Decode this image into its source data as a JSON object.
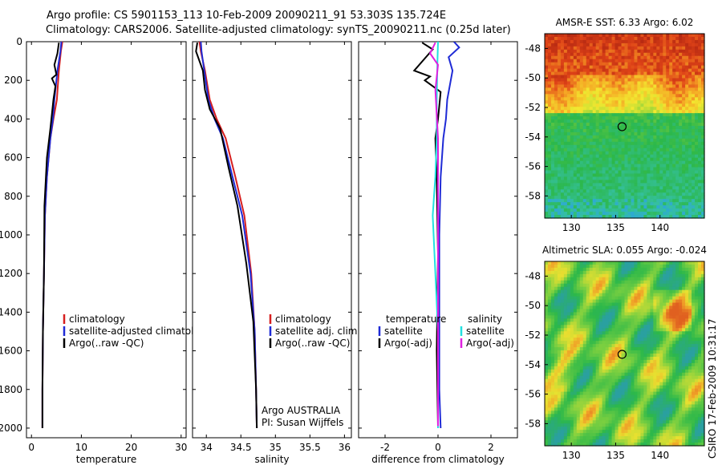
{
  "header": {
    "line1": "Argo profile: CS 5901153_113 10-Feb-2009 20090211_91 53.303S 135.724E",
    "line2": "Climatology: CARS2006. Satellite-adjusted climatology: synTS_20090211.nc (0.25d later)"
  },
  "colors": {
    "climatology": "#d61f1f",
    "satellite": "#1f2bd6",
    "argo": "#000000",
    "sat_diff": "#22e0e0",
    "argo_adj": "#e020e0"
  },
  "chart_data": [
    {
      "type": "line",
      "panel": "temperature",
      "xlabel": "temperature",
      "ylabel": "",
      "xlim": [
        -1,
        31
      ],
      "ylim": [
        2050,
        0
      ],
      "xticks": [
        "0",
        "10",
        "20",
        "30"
      ],
      "yticks": [
        "0",
        "200",
        "400",
        "600",
        "800",
        "1000",
        "1200",
        "1400",
        "1600",
        "1800",
        "2000"
      ],
      "legend": [
        "climatology",
        "satellite-adjusted climatology",
        "Argo(..raw -QC)"
      ],
      "series": [
        {
          "name": "climatology",
          "x": [
            6.2,
            5.9,
            5.5,
            5.1,
            4.4,
            3.8,
            3.1,
            2.7,
            2.5,
            2.3,
            2.2,
            2.2
          ],
          "y": [
            0,
            50,
            150,
            300,
            400,
            500,
            700,
            900,
            1200,
            1500,
            1800,
            2000
          ]
        },
        {
          "name": "satellite adj. clim.",
          "x": [
            6.0,
            5.8,
            5.2,
            4.6,
            4.3,
            3.8,
            3.1,
            2.7,
            2.5,
            2.3,
            2.2,
            2.2
          ],
          "y": [
            0,
            50,
            150,
            300,
            400,
            500,
            700,
            900,
            1200,
            1500,
            1800,
            2000
          ]
        },
        {
          "name": "Argo(..raw -QC)",
          "x": [
            5.5,
            5.2,
            4.6,
            5.0,
            4.1,
            4.8,
            4.4,
            3.8,
            3.1,
            2.6,
            2.5,
            2.3,
            2.2,
            2.2
          ],
          "y": [
            5,
            60,
            120,
            170,
            190,
            230,
            300,
            450,
            600,
            850,
            1200,
            1500,
            1800,
            2000
          ]
        }
      ]
    },
    {
      "type": "line",
      "panel": "salinity",
      "xlabel": "salinity",
      "ylabel": "",
      "xlim": [
        33.8,
        36.1
      ],
      "ylim": [
        2050,
        0
      ],
      "xticks": [
        "34",
        "34.5",
        "35",
        "35.5",
        "36"
      ],
      "legend": [
        "climatology",
        "satellite adj. clim.",
        "Argo(..raw -QC)"
      ],
      "annotations": [
        "Argo AUSTRALIA",
        "PI: Susan Wijffels"
      ],
      "series": [
        {
          "name": "climatology",
          "x": [
            33.9,
            33.92,
            33.98,
            34.05,
            34.15,
            34.28,
            34.42,
            34.55,
            34.65,
            34.7,
            34.72,
            34.73
          ],
          "y": [
            0,
            50,
            150,
            300,
            400,
            500,
            700,
            900,
            1200,
            1500,
            1800,
            2000
          ]
        },
        {
          "name": "satellite adj. clim.",
          "x": [
            33.92,
            33.93,
            33.97,
            34.03,
            34.12,
            34.24,
            34.38,
            34.52,
            34.64,
            34.7,
            34.72,
            34.73
          ],
          "y": [
            0,
            50,
            150,
            300,
            400,
            500,
            700,
            900,
            1200,
            1500,
            1800,
            2000
          ]
        },
        {
          "name": "Argo(..raw -QC)",
          "x": [
            33.87,
            33.85,
            33.95,
            33.98,
            34.05,
            34.2,
            34.32,
            34.45,
            34.58,
            34.68,
            34.72,
            34.73
          ],
          "y": [
            5,
            50,
            150,
            250,
            350,
            450,
            650,
            850,
            1150,
            1450,
            1800,
            2000
          ]
        }
      ]
    },
    {
      "type": "line",
      "panel": "difference",
      "xlabel": "difference from climatology",
      "ylabel": "",
      "xlim": [
        -3,
        3
      ],
      "ylim": [
        2050,
        0
      ],
      "xticks": [
        "-2",
        "0",
        "2"
      ],
      "legend": [
        "temperature",
        "satellite",
        "Argo(-adj)",
        "salinity",
        "satellite",
        "Argo(-adj)"
      ],
      "series": [
        {
          "name": "temperature satellite",
          "x": [
            0.6,
            0.8,
            0.4,
            0.55,
            0.35,
            0.3,
            0.2,
            0.1,
            0.05,
            0.05,
            0.05,
            0.1
          ],
          "y": [
            0,
            30,
            80,
            150,
            300,
            400,
            500,
            700,
            1000,
            1400,
            1800,
            2000
          ]
        },
        {
          "name": "temperature Argo(-adj)",
          "x": [
            -0.6,
            -0.2,
            -0.9,
            -0.3,
            -0.5,
            0.1,
            0.0,
            -0.1,
            -0.05,
            0.0,
            -0.05,
            0.0
          ],
          "y": [
            5,
            40,
            150,
            180,
            200,
            260,
            400,
            500,
            700,
            1100,
            1600,
            1990
          ]
        },
        {
          "name": "salinity satellite",
          "x": [
            0.0,
            -0.02,
            -0.05,
            -0.05,
            -0.1,
            -0.15,
            -0.2,
            -0.1,
            0.0,
            0.0
          ],
          "y": [
            0,
            100,
            300,
            500,
            700,
            800,
            900,
            1200,
            1500,
            2000
          ]
        },
        {
          "name": "salinity Argo(-adj)",
          "x": [
            -0.1,
            -0.3,
            0.0,
            -0.1,
            0.0,
            0.0,
            0.0
          ],
          "y": [
            5,
            60,
            120,
            250,
            500,
            1000,
            1990
          ]
        }
      ]
    },
    {
      "type": "heatmap",
      "panel": "AMSR-E SST",
      "title": "AMSR-E SST: 6.33 Argo: 6.02",
      "xlim": [
        127,
        145
      ],
      "ylim": [
        -59.5,
        -47
      ],
      "xticks": [
        "130",
        "135",
        "140"
      ],
      "yticks": [
        "-48",
        "-50",
        "-52",
        "-54",
        "-56",
        "-58"
      ],
      "marker": {
        "lon": 135.724,
        "lat": -53.303
      }
    },
    {
      "type": "heatmap",
      "panel": "Altimetric SLA",
      "title": "Altimetric SLA: 0.055 Argo: -0.024",
      "xlim": [
        127,
        145
      ],
      "ylim": [
        -59.5,
        -47
      ],
      "xticks": [
        "130",
        "135",
        "140"
      ],
      "yticks": [
        "-48",
        "-50",
        "-52",
        "-54",
        "-56",
        "-58"
      ],
      "marker": {
        "lon": 135.724,
        "lat": -53.303
      }
    }
  ],
  "footer": {
    "credit": "CSIRO 17-Feb-2009 10:31:17"
  }
}
